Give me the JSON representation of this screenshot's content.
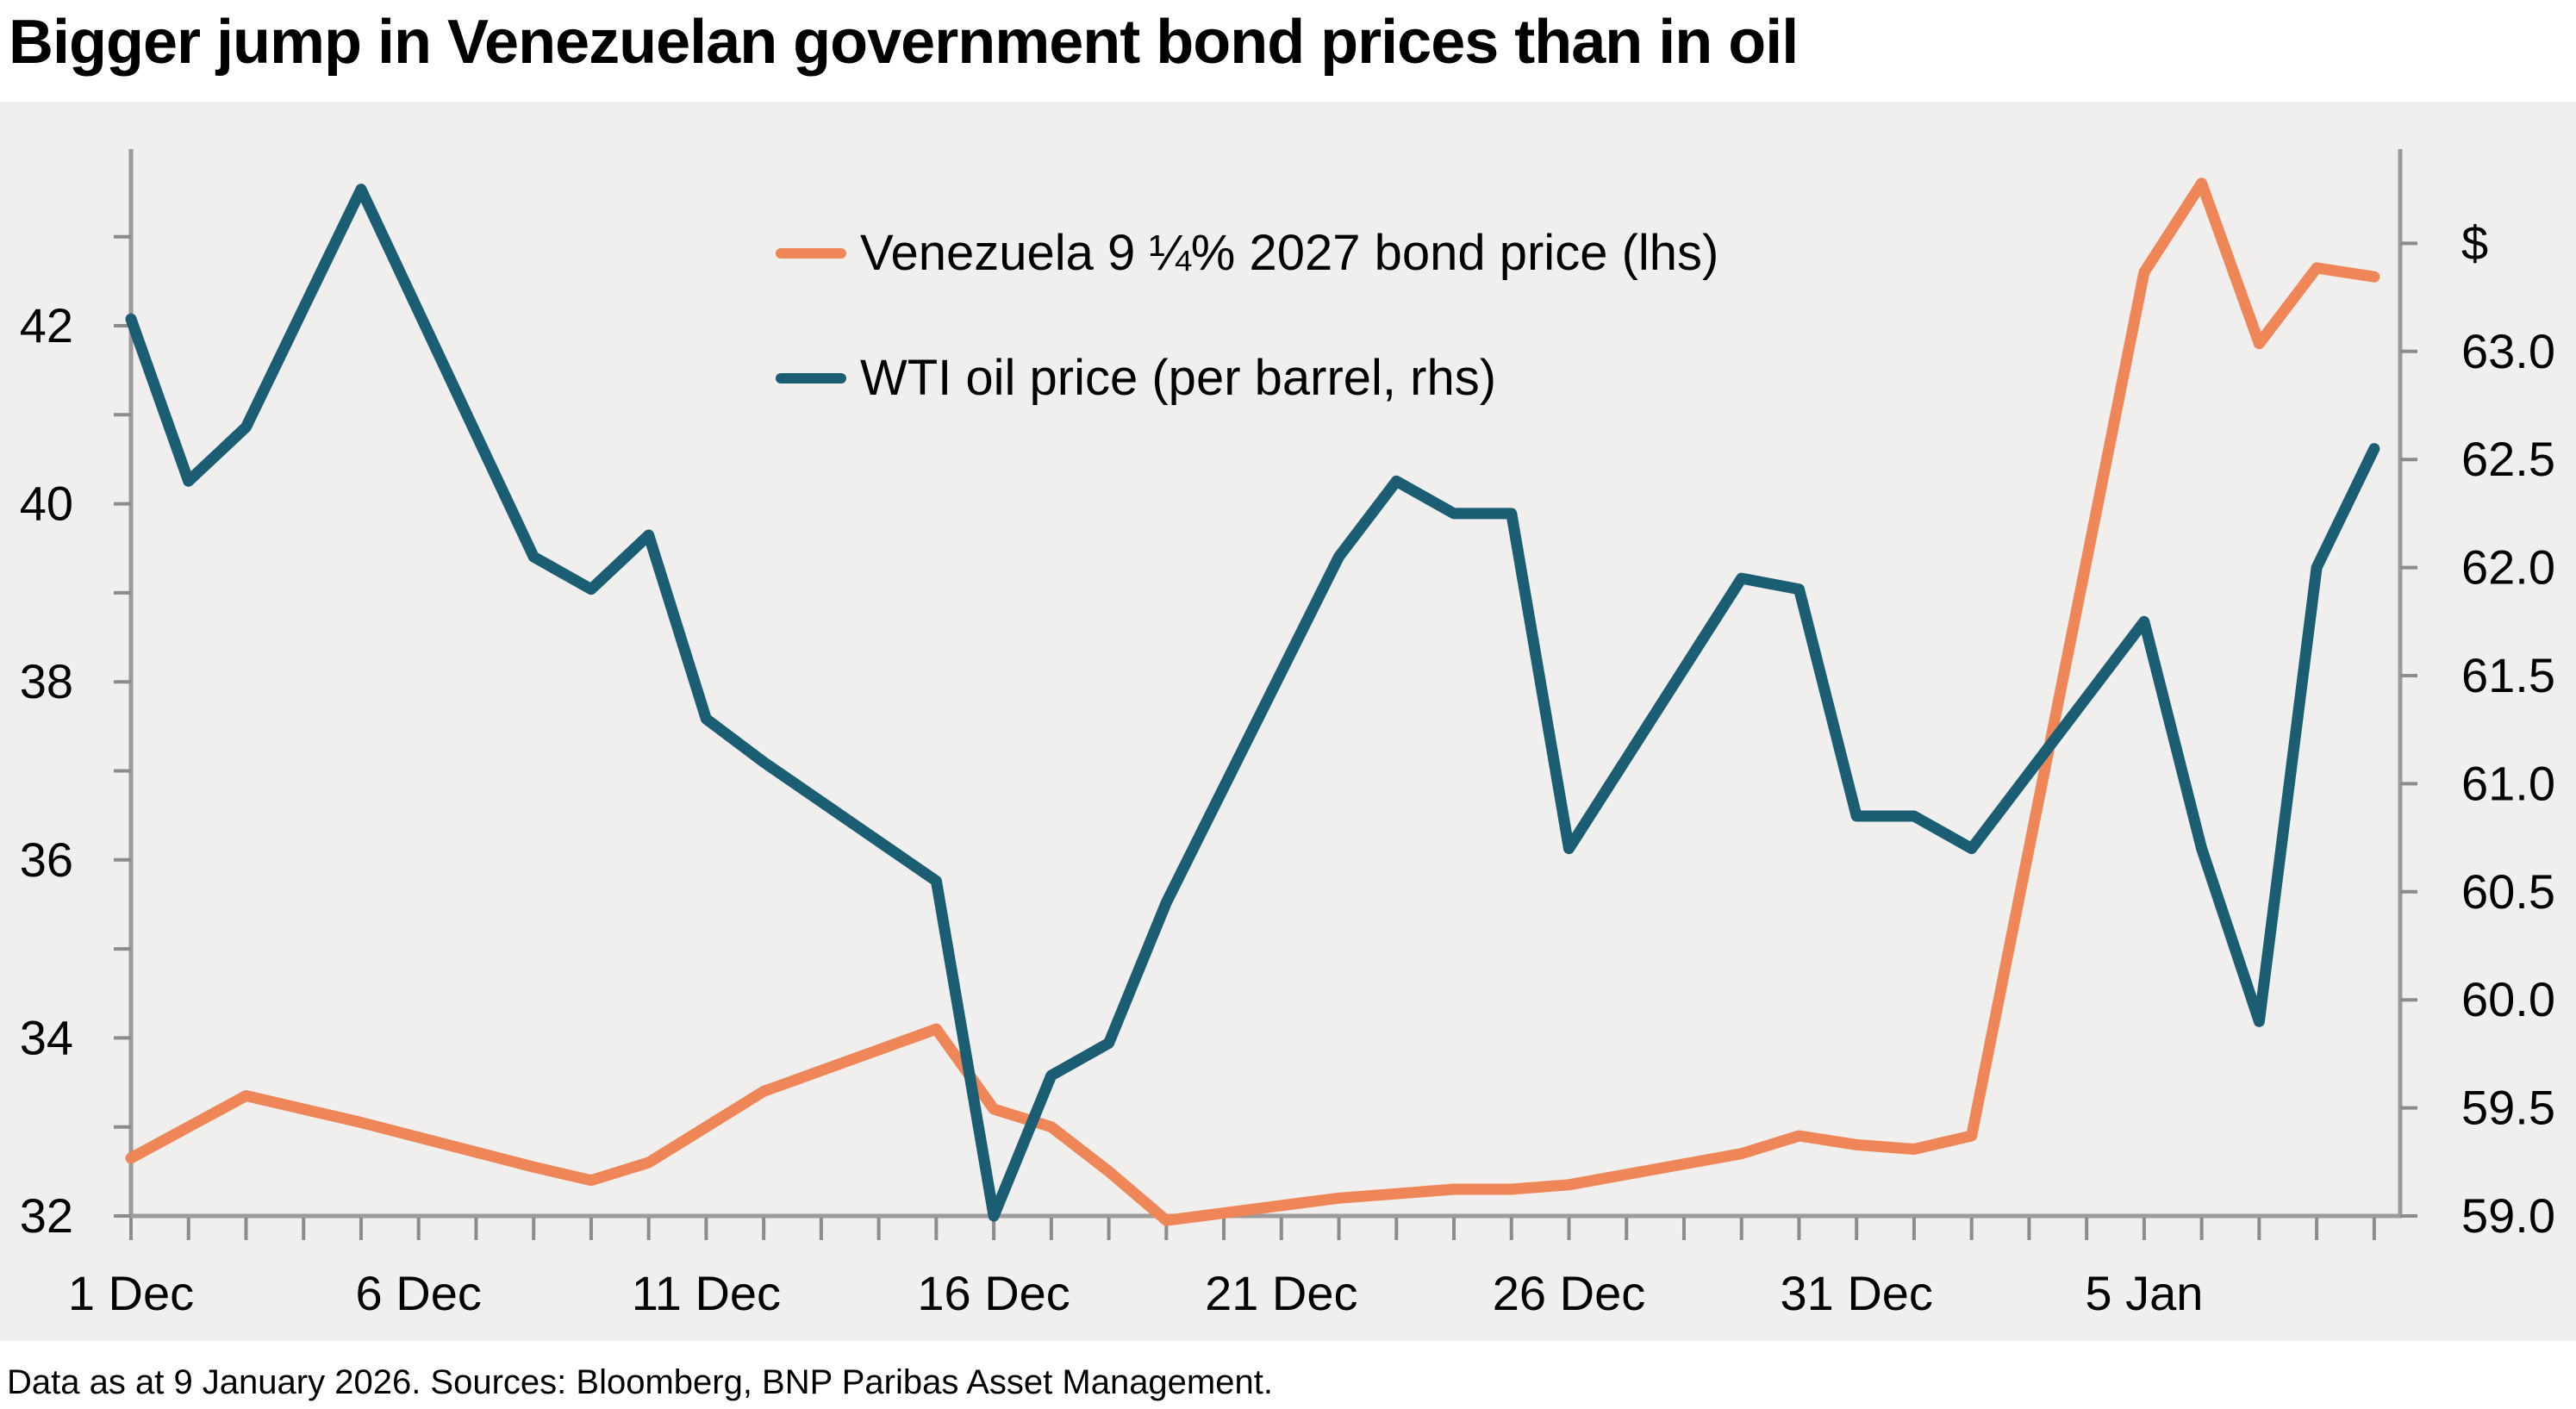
{
  "title": "Bigger jump in Venezuelan government bond prices than in oil",
  "footer": "Data as at 9 January 2026. Sources: Bloomberg, BNP Paribas Asset Management.",
  "colors": {
    "bond": "#EF8658",
    "oil": "#1B5E73",
    "plot_bg": "#F0EFEE",
    "axis": "#9B9B9B",
    "tick": "#8C8C8C",
    "label": "#000000"
  },
  "legend": [
    {
      "label": "Venezuela 9 ¼% 2027 bond price (lhs)",
      "color_key": "bond"
    },
    {
      "label": "WTI oil price (per barrel, rhs)",
      "color_key": "oil"
    }
  ],
  "chart_data": {
    "type": "line",
    "title": "Bigger jump in Venezuelan government bond prices than in oil",
    "grid": false,
    "legend_position": "top-center-inside",
    "x_axis": {
      "unit": "date",
      "minor_tick_day_offsets_range": [
        0,
        39
      ],
      "labels": [
        {
          "text": "1 Dec",
          "day": 0
        },
        {
          "text": "6 Dec",
          "day": 5
        },
        {
          "text": "11 Dec",
          "day": 10
        },
        {
          "text": "16 Dec",
          "day": 15
        },
        {
          "text": "21 Dec",
          "day": 20
        },
        {
          "text": "26 Dec",
          "day": 25
        },
        {
          "text": "31 Dec",
          "day": 30
        },
        {
          "text": "5 Jan",
          "day": 35
        }
      ]
    },
    "left_axis": {
      "series": "Venezuela 9 ¼% 2027 bond price (lhs)",
      "range_bottom": 32,
      "range_top": 43.6,
      "tick_min": 32,
      "tick_max": 43,
      "tick_step": 1,
      "labeled_ticks": [
        32,
        34,
        36,
        38,
        40,
        42
      ]
    },
    "right_axis": {
      "series": "WTI oil price (per barrel, rhs)",
      "unit_symbol": "$",
      "unit_symbol_at": 63.5,
      "range_bottom": 59.0,
      "range_top": 63.6,
      "tick_min": 59.0,
      "tick_max": 63.5,
      "tick_step": 0.5,
      "labeled_ticks": [
        59.0,
        59.5,
        60.0,
        60.5,
        61.0,
        61.5,
        62.0,
        62.5,
        63.0
      ]
    },
    "series": [
      {
        "name": "Venezuela 9 ¼% 2027 bond price (lhs)",
        "axis": "left",
        "color_key": "bond",
        "points": [
          [
            "1 Dec",
            0,
            32.65
          ],
          [
            "2 Dec",
            1,
            33.0
          ],
          [
            "3 Dec",
            2,
            33.35
          ],
          [
            "4 Dec",
            3,
            33.2
          ],
          [
            "5 Dec",
            4,
            33.05
          ],
          [
            "8 Dec",
            7,
            32.55
          ],
          [
            "9 Dec",
            8,
            32.4
          ],
          [
            "10 Dec",
            9,
            32.6
          ],
          [
            "11 Dec",
            10,
            33.0
          ],
          [
            "12 Dec",
            11,
            33.4
          ],
          [
            "15 Dec",
            14,
            34.1
          ],
          [
            "16 Dec",
            15,
            33.2
          ],
          [
            "17 Dec",
            16,
            33.0
          ],
          [
            "18 Dec",
            17,
            32.5
          ],
          [
            "19 Dec",
            18,
            31.95
          ],
          [
            "22 Dec",
            21,
            32.2
          ],
          [
            "23 Dec",
            22,
            32.25
          ],
          [
            "24 Dec",
            23,
            32.3
          ],
          [
            "25 Dec",
            24,
            32.3
          ],
          [
            "26 Dec",
            25,
            32.35
          ],
          [
            "29 Dec",
            28,
            32.7
          ],
          [
            "30 Dec",
            29,
            32.9
          ],
          [
            "31 Dec",
            30,
            32.8
          ],
          [
            "1 Jan",
            31,
            32.75
          ],
          [
            "2 Jan",
            32,
            32.9
          ],
          [
            "5 Jan",
            35,
            42.6
          ],
          [
            "6 Jan",
            36,
            43.6
          ],
          [
            "7 Jan",
            37,
            41.8
          ],
          [
            "8 Jan",
            38,
            42.65
          ],
          [
            "9 Jan",
            39,
            42.55
          ]
        ]
      },
      {
        "name": "WTI oil price (per barrel, rhs)",
        "axis": "right",
        "color_key": "oil",
        "points": [
          [
            "1 Dec",
            0,
            63.15
          ],
          [
            "2 Dec",
            1,
            62.4
          ],
          [
            "3 Dec",
            2,
            62.65
          ],
          [
            "4 Dec",
            3,
            63.2
          ],
          [
            "5 Dec",
            4,
            63.75
          ],
          [
            "8 Dec",
            7,
            62.05
          ],
          [
            "9 Dec",
            8,
            61.9
          ],
          [
            "10 Dec",
            9,
            62.15
          ],
          [
            "11 Dec",
            10,
            61.3
          ],
          [
            "12 Dec",
            11,
            61.1
          ],
          [
            "15 Dec",
            14,
            60.55
          ],
          [
            "16 Dec",
            15,
            59.0
          ],
          [
            "17 Dec",
            16,
            59.65
          ],
          [
            "18 Dec",
            17,
            59.8
          ],
          [
            "19 Dec",
            18,
            60.45
          ],
          [
            "22 Dec",
            21,
            62.05
          ],
          [
            "23 Dec",
            22,
            62.4
          ],
          [
            "24 Dec",
            23,
            62.25
          ],
          [
            "25 Dec",
            24,
            62.25
          ],
          [
            "26 Dec",
            25,
            60.7
          ],
          [
            "29 Dec",
            28,
            61.95
          ],
          [
            "30 Dec",
            29,
            61.9
          ],
          [
            "31 Dec",
            30,
            60.85
          ],
          [
            "1 Jan",
            31,
            60.85
          ],
          [
            "2 Jan",
            32,
            60.7
          ],
          [
            "5 Jan",
            35,
            61.75
          ],
          [
            "6 Jan",
            36,
            60.7
          ],
          [
            "7 Jan",
            37,
            59.9
          ],
          [
            "8 Jan",
            38,
            62.0
          ],
          [
            "9 Jan",
            39,
            62.55
          ]
        ]
      }
    ]
  }
}
